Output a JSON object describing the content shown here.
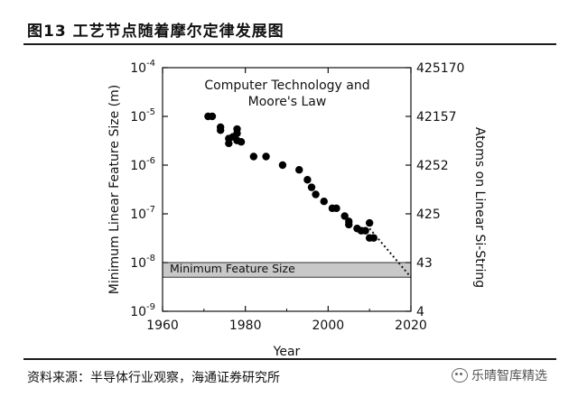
{
  "figure": {
    "title": "图13 工艺节点随着摩尔定律发展图",
    "source": "资料来源：半导体行业观察，海通证券研究所",
    "watermark": "乐晴智库精选",
    "watermark_icon": "wechat-icon"
  },
  "chart_data": {
    "type": "scatter",
    "title": "Computer Technology and Moore's Law",
    "xlabel": "Year",
    "ylabel": "Minimum Linear Feature Size (m)",
    "y2label": "Atoms on Linear Si-String",
    "xlim": [
      1960,
      2020
    ],
    "ylim": [
      1e-09,
      0.0001
    ],
    "yscale": "log",
    "xticks": [
      1960,
      1980,
      2000,
      2020
    ],
    "yticks": [
      {
        "value": 0.0001,
        "base": "10",
        "exp": "-4"
      },
      {
        "value": 1e-05,
        "base": "10",
        "exp": "-5"
      },
      {
        "value": 1e-06,
        "base": "10",
        "exp": "-6"
      },
      {
        "value": 1e-07,
        "base": "10",
        "exp": "-7"
      },
      {
        "value": 1e-08,
        "base": "10",
        "exp": "-8"
      },
      {
        "value": 1e-09,
        "base": "10",
        "exp": "-9"
      }
    ],
    "y2ticks": [
      {
        "value": 0.0001,
        "label": "425170"
      },
      {
        "value": 1e-05,
        "label": "42157"
      },
      {
        "value": 1e-06,
        "label": "4252"
      },
      {
        "value": 1e-07,
        "label": "425"
      },
      {
        "value": 1e-08,
        "label": "43"
      },
      {
        "value": 1e-09,
        "label": "4"
      }
    ],
    "band": {
      "label": "Minimum Feature Size",
      "ymin": 5e-09,
      "ymax": 1e-08,
      "color": "#c8c8c8"
    },
    "trend": {
      "from": [
        2010,
        5e-08
      ],
      "to": [
        2020,
        5e-09
      ],
      "style": "dotted"
    },
    "grid": false,
    "series": [
      {
        "color": "#000000",
        "points": [
          [
            1971,
            1e-05
          ],
          [
            1972,
            1e-05
          ],
          [
            1974,
            6e-06
          ],
          [
            1974,
            5.2e-06
          ],
          [
            1976,
            3.5e-06
          ],
          [
            1976,
            2.8e-06
          ],
          [
            1977,
            3.8e-06
          ],
          [
            1978,
            5.5e-06
          ],
          [
            1978,
            4.5e-06
          ],
          [
            1978,
            3.2e-06
          ],
          [
            1979,
            3e-06
          ],
          [
            1982,
            1.5e-06
          ],
          [
            1985,
            1.5e-06
          ],
          [
            1989,
            1e-06
          ],
          [
            1993,
            8e-07
          ],
          [
            1995,
            5e-07
          ],
          [
            1996,
            3.5e-07
          ],
          [
            1997,
            2.5e-07
          ],
          [
            1999,
            1.8e-07
          ],
          [
            2001,
            1.3e-07
          ],
          [
            2002,
            1.3e-07
          ],
          [
            2004,
            9e-08
          ],
          [
            2005,
            7e-08
          ],
          [
            2005,
            6e-08
          ],
          [
            2007,
            5e-08
          ],
          [
            2008,
            4.5e-08
          ],
          [
            2009,
            4.5e-08
          ],
          [
            2010,
            6.5e-08
          ],
          [
            2010,
            3.2e-08
          ],
          [
            2011,
            3.2e-08
          ]
        ]
      }
    ]
  }
}
